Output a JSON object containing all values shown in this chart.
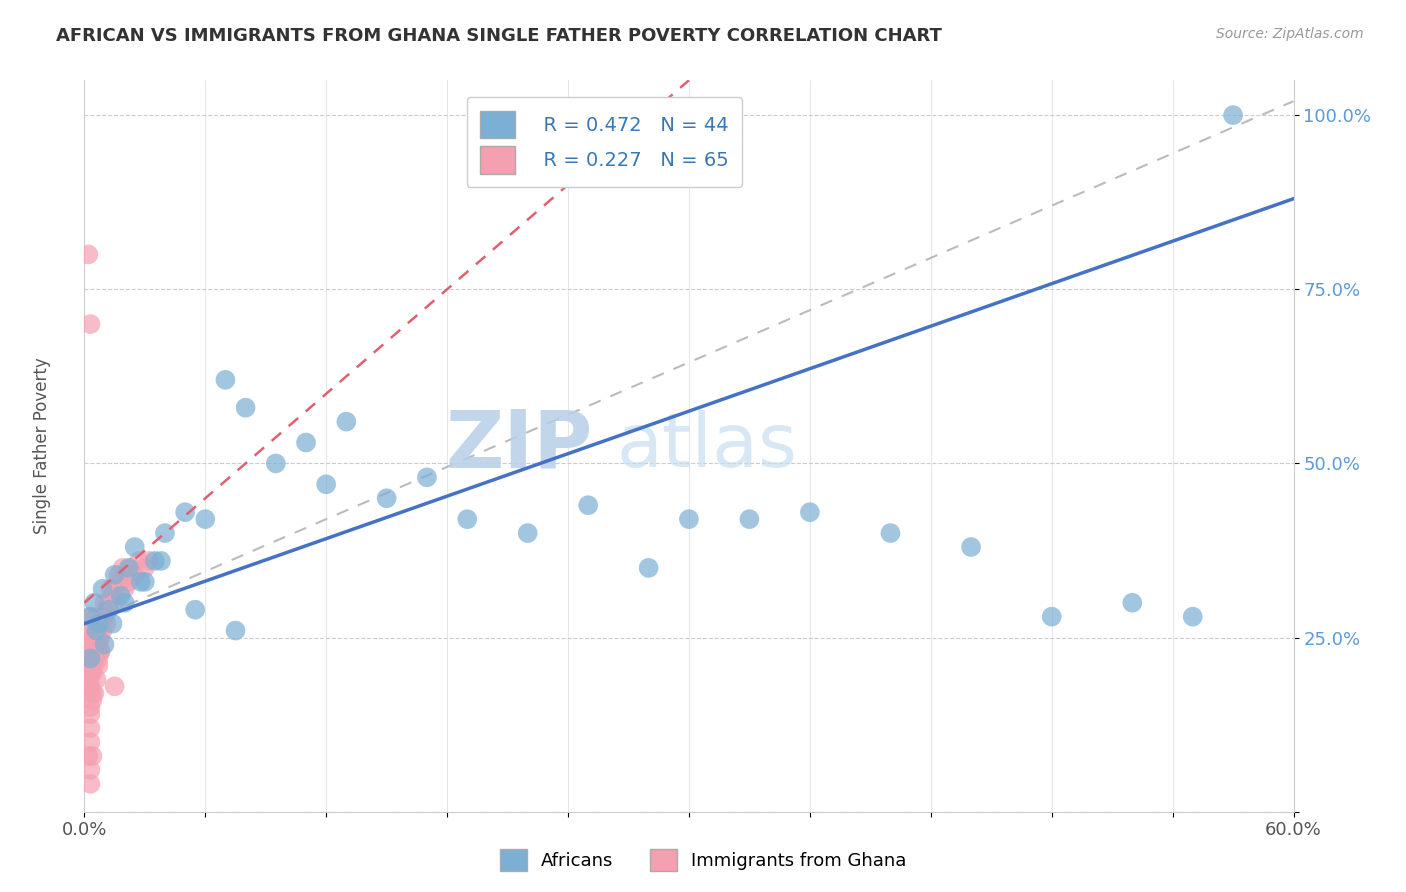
{
  "title": "AFRICAN VS IMMIGRANTS FROM GHANA SINGLE FATHER POVERTY CORRELATION CHART",
  "source": "Source: ZipAtlas.com",
  "ylabel": "Single Father Poverty",
  "xlim": [
    0.0,
    0.6
  ],
  "ylim": [
    0.0,
    1.05
  ],
  "xtick_positions": [
    0.0,
    0.06,
    0.12,
    0.18,
    0.24,
    0.3,
    0.36,
    0.42,
    0.48,
    0.54,
    0.6
  ],
  "xticklabels": [
    "0.0%",
    "",
    "",
    "",
    "",
    "",
    "",
    "",
    "",
    "",
    "60.0%"
  ],
  "ytick_positions": [
    0.0,
    0.25,
    0.5,
    0.75,
    1.0
  ],
  "yticklabels": [
    "",
    "25.0%",
    "50.0%",
    "75.0%",
    "100.0%"
  ],
  "africans_color": "#7bafd4",
  "ghana_color": "#f4a0b0",
  "africans_line_color": "#4472c4",
  "ghana_line_color": "#e06070",
  "legend_R1": "R = 0.472",
  "legend_N1": "N = 44",
  "legend_R2": "R = 0.227",
  "legend_N2": "N = 65",
  "watermark_zip": "ZIP",
  "watermark_atlas": "atlas",
  "blue_line_x0": 0.0,
  "blue_line_y0": 0.27,
  "blue_line_x1": 0.6,
  "blue_line_y1": 0.88,
  "pink_line_x0": 0.0,
  "pink_line_y0": 0.3,
  "pink_line_x1": 0.3,
  "pink_line_y1": 1.05,
  "gray_line_x0": 0.0,
  "gray_line_y0": 0.27,
  "gray_line_x1": 0.6,
  "gray_line_y1": 1.02,
  "africans_x": [
    0.003,
    0.005,
    0.007,
    0.009,
    0.012,
    0.015,
    0.018,
    0.022,
    0.025,
    0.03,
    0.035,
    0.04,
    0.05,
    0.06,
    0.07,
    0.08,
    0.095,
    0.11,
    0.13,
    0.15,
    0.17,
    0.19,
    0.22,
    0.25,
    0.28,
    0.3,
    0.33,
    0.36,
    0.4,
    0.44,
    0.48,
    0.52,
    0.55,
    0.57,
    0.003,
    0.006,
    0.01,
    0.014,
    0.02,
    0.028,
    0.038,
    0.055,
    0.075,
    0.12
  ],
  "africans_y": [
    0.28,
    0.3,
    0.27,
    0.32,
    0.29,
    0.34,
    0.31,
    0.35,
    0.38,
    0.33,
    0.36,
    0.4,
    0.43,
    0.42,
    0.62,
    0.58,
    0.5,
    0.53,
    0.56,
    0.45,
    0.48,
    0.42,
    0.4,
    0.44,
    0.35,
    0.42,
    0.42,
    0.43,
    0.4,
    0.38,
    0.28,
    0.3,
    0.28,
    1.0,
    0.22,
    0.26,
    0.24,
    0.27,
    0.3,
    0.33,
    0.36,
    0.29,
    0.26,
    0.47
  ],
  "ghana_x": [
    0.001,
    0.002,
    0.002,
    0.003,
    0.003,
    0.003,
    0.003,
    0.003,
    0.004,
    0.004,
    0.004,
    0.005,
    0.005,
    0.005,
    0.005,
    0.006,
    0.006,
    0.006,
    0.007,
    0.007,
    0.007,
    0.008,
    0.008,
    0.008,
    0.009,
    0.009,
    0.01,
    0.01,
    0.011,
    0.011,
    0.012,
    0.013,
    0.014,
    0.015,
    0.016,
    0.017,
    0.018,
    0.019,
    0.02,
    0.021,
    0.022,
    0.023,
    0.025,
    0.027,
    0.03,
    0.032,
    0.003,
    0.004,
    0.005,
    0.006,
    0.007,
    0.008,
    0.003,
    0.004,
    0.003,
    0.004,
    0.003,
    0.003,
    0.002,
    0.003,
    0.003,
    0.004,
    0.015,
    0.002,
    0.003
  ],
  "ghana_y": [
    0.2,
    0.22,
    0.19,
    0.24,
    0.26,
    0.21,
    0.18,
    0.28,
    0.23,
    0.25,
    0.2,
    0.26,
    0.22,
    0.24,
    0.21,
    0.25,
    0.23,
    0.28,
    0.26,
    0.24,
    0.22,
    0.27,
    0.25,
    0.23,
    0.28,
    0.26,
    0.28,
    0.3,
    0.29,
    0.27,
    0.3,
    0.32,
    0.31,
    0.32,
    0.3,
    0.34,
    0.33,
    0.35,
    0.32,
    0.34,
    0.33,
    0.35,
    0.34,
    0.36,
    0.35,
    0.36,
    0.18,
    0.2,
    0.17,
    0.19,
    0.21,
    0.23,
    0.15,
    0.16,
    0.14,
    0.17,
    0.12,
    0.1,
    0.08,
    0.06,
    0.04,
    0.08,
    0.18,
    0.8,
    0.7
  ]
}
